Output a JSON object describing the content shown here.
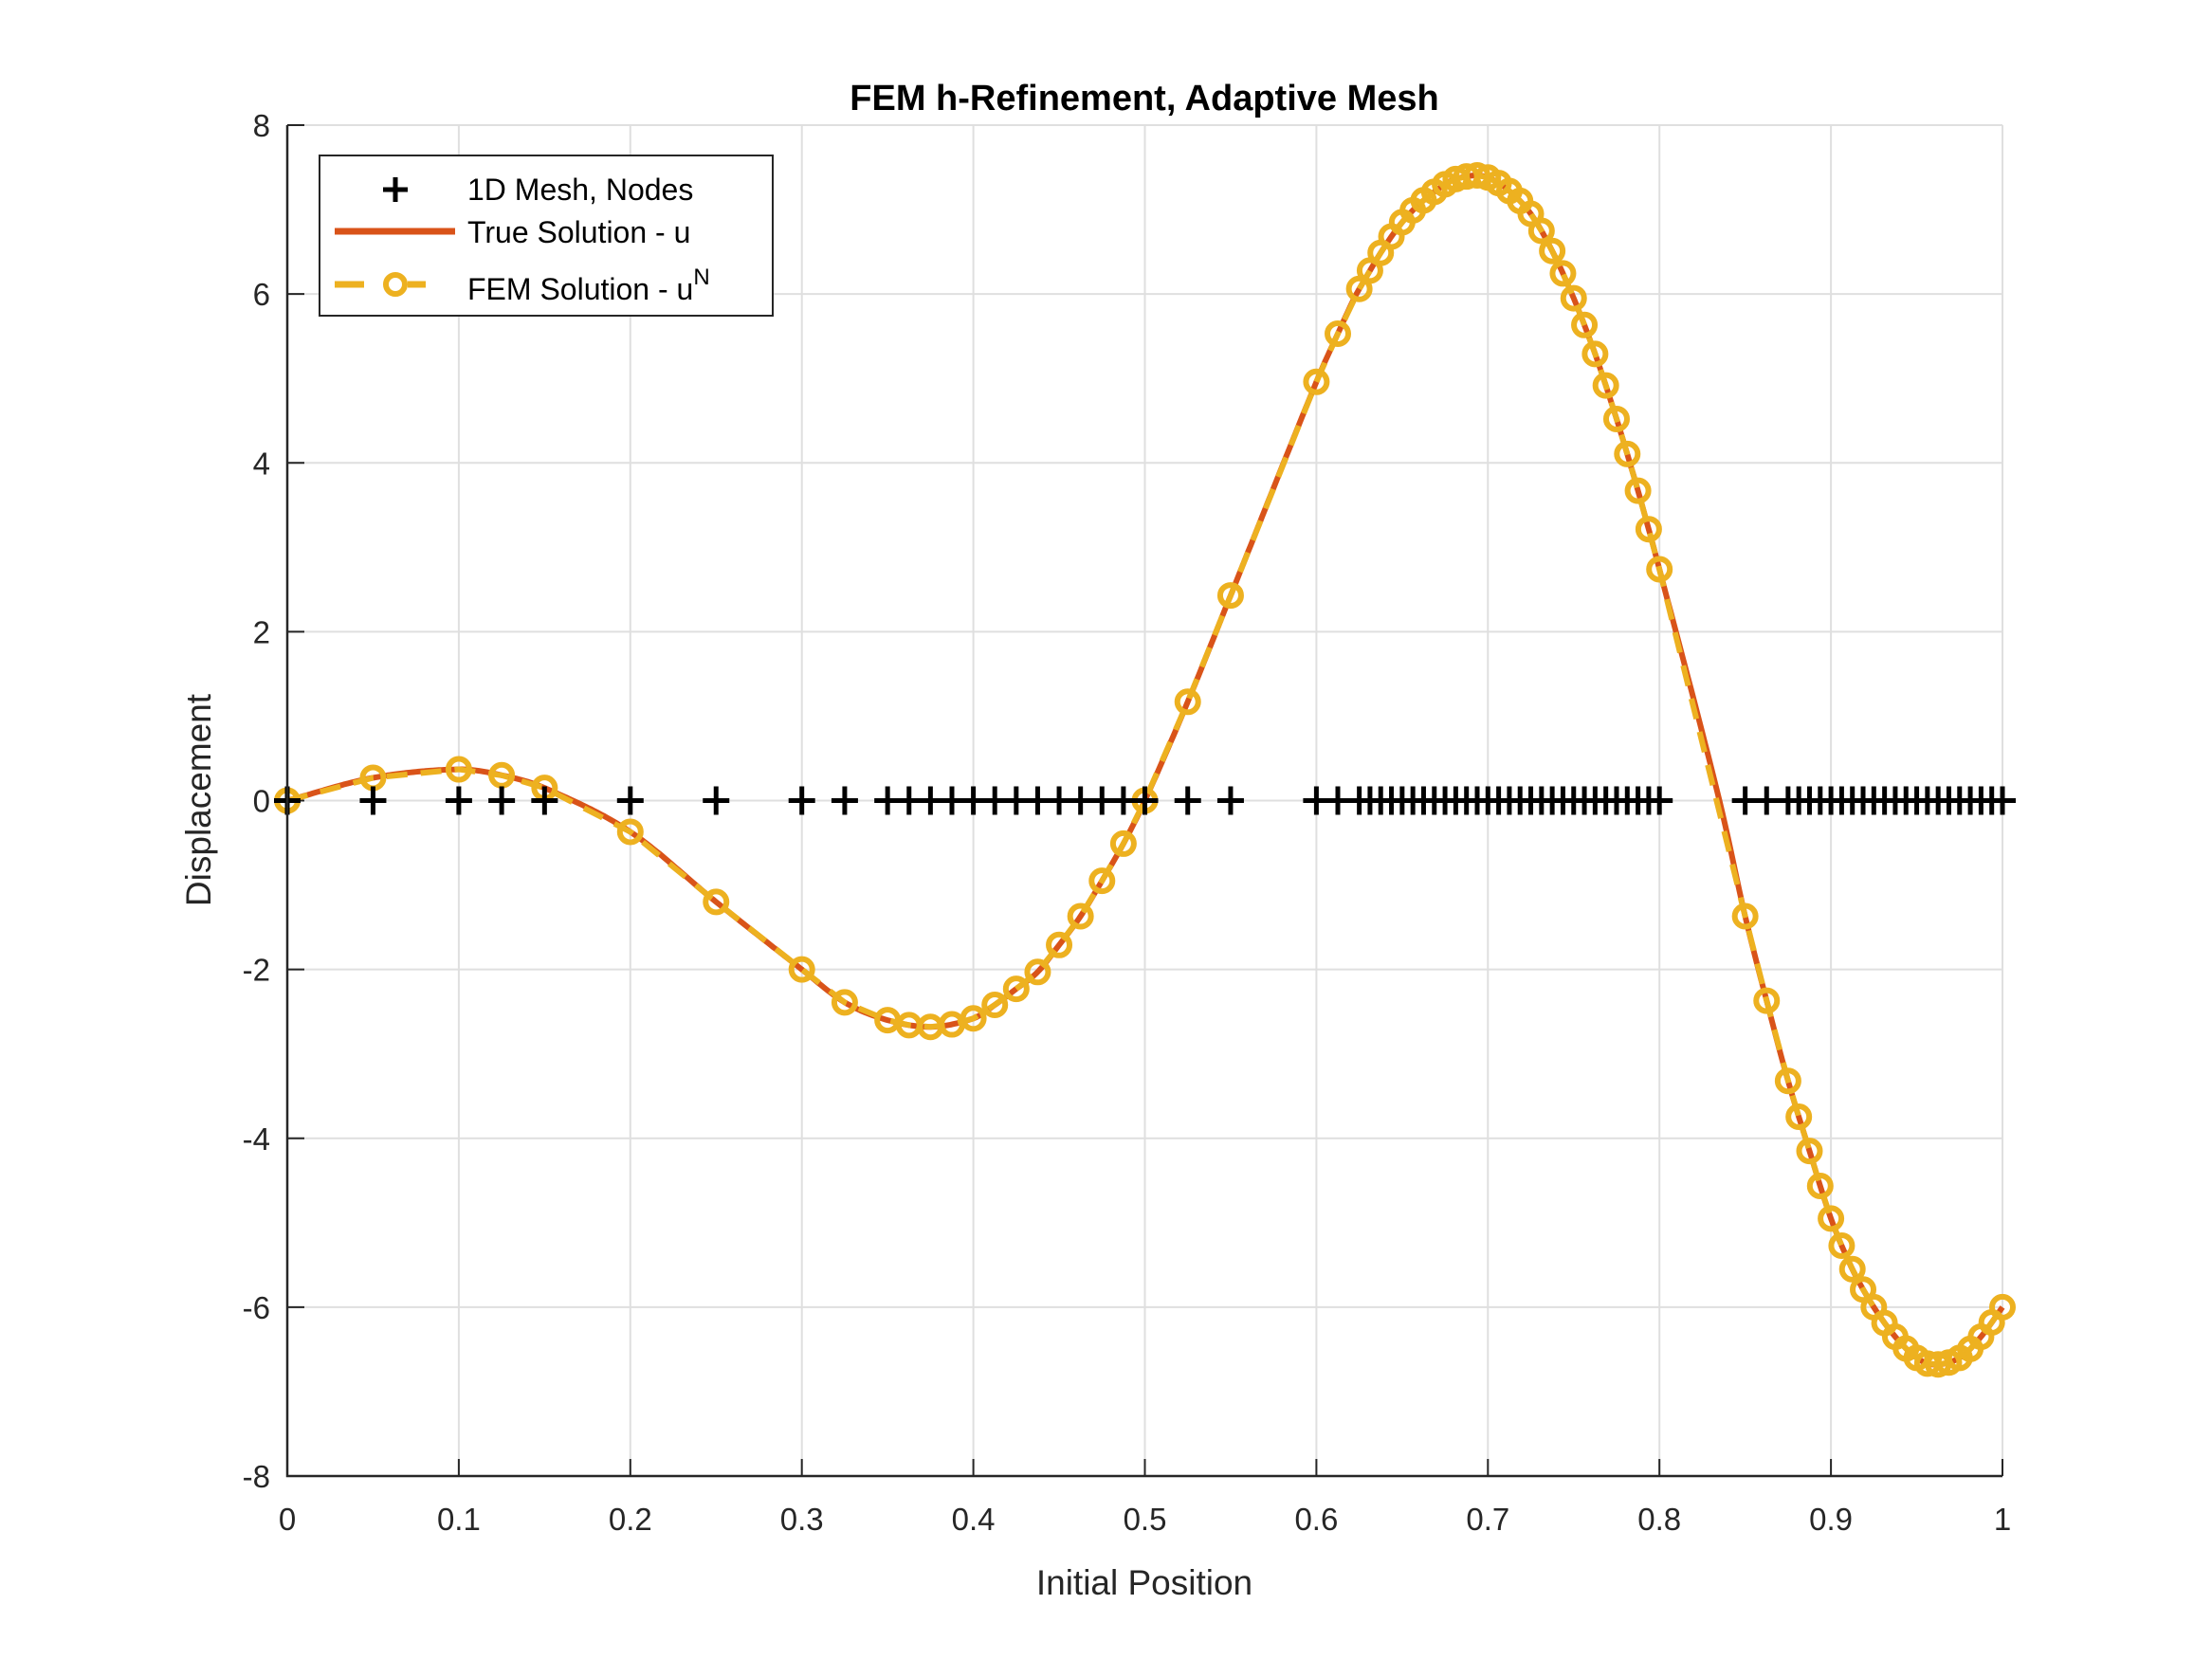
{
  "chart_data": {
    "type": "line",
    "title": "FEM h-Refinement, Adaptive Mesh",
    "xlabel": "Initial Position",
    "ylabel": "Displacement",
    "xlim": [
      0,
      1
    ],
    "ylim": [
      -8,
      8
    ],
    "xticks": [
      0,
      0.1,
      0.2,
      0.3,
      0.4,
      0.5,
      0.6,
      0.7,
      0.8,
      0.9,
      1
    ],
    "xtick_labels": [
      "0",
      "0.1",
      "0.2",
      "0.3",
      "0.4",
      "0.5",
      "0.6",
      "0.7",
      "0.8",
      "0.9",
      "1"
    ],
    "yticks": [
      -8,
      -6,
      -4,
      -2,
      0,
      2,
      4,
      6,
      8
    ],
    "ytick_labels": [
      "-8",
      "-6",
      "-4",
      "-2",
      "0",
      "2",
      "4",
      "6",
      "8"
    ],
    "grid": true,
    "legend_position": "northwest",
    "legend": [
      {
        "label": "1D Mesh, Nodes",
        "style": "marker-plus",
        "color": "#000000"
      },
      {
        "label": "True Solution - u",
        "style": "solid-line",
        "color": "#D95319"
      },
      {
        "label": "FEM Solution - u",
        "label_superscript": "N",
        "style": "dashed-line-circle",
        "color": "#EDB120"
      }
    ],
    "series": [
      {
        "name": "True Solution - u",
        "color": "#D95319",
        "x": [
          0,
          0.05,
          0.1,
          0.125,
          0.15,
          0.2,
          0.25,
          0.3,
          0.325,
          0.35,
          0.375,
          0.4,
          0.4125,
          0.425,
          0.4375,
          0.45,
          0.4625,
          0.475,
          0.4875,
          0.5,
          0.525,
          0.55,
          0.6,
          0.6125,
          0.625,
          0.65,
          0.675,
          0.69,
          0.7,
          0.7125,
          0.725,
          0.7375,
          0.75,
          0.7625,
          0.775,
          0.7875,
          0.8,
          0.835,
          0.85,
          0.8625,
          0.875,
          0.8875,
          0.9,
          0.9125,
          0.925,
          0.9375,
          0.95,
          0.96,
          0.975,
          0.9875,
          1.0
        ],
        "values": [
          0,
          0.27,
          0.37,
          0.3,
          0.15,
          -0.37,
          -1.2,
          -2.0,
          -2.39,
          -2.6,
          -2.68,
          -2.58,
          -2.42,
          -2.23,
          -2.03,
          -1.71,
          -1.37,
          -0.95,
          -0.51,
          0,
          1.17,
          2.43,
          4.96,
          5.53,
          6.06,
          6.85,
          7.3,
          7.4,
          7.38,
          7.22,
          6.95,
          6.51,
          5.95,
          5.29,
          4.52,
          3.67,
          2.74,
          0,
          -1.37,
          -2.37,
          -3.32,
          -4.15,
          -4.95,
          -5.55,
          -6.0,
          -6.35,
          -6.6,
          -6.68,
          -6.6,
          -6.35,
          -6.0
        ]
      },
      {
        "name": "1D Mesh, Nodes",
        "color": "#000000",
        "marker": "+",
        "y_constant": 0,
        "x": [
          0,
          0.05,
          0.1,
          0.125,
          0.15,
          0.2,
          0.25,
          0.3,
          0.325,
          0.35,
          0.3625,
          0.375,
          0.3875,
          0.4,
          0.4125,
          0.425,
          0.4375,
          0.45,
          0.4625,
          0.475,
          0.4875,
          0.5,
          0.525,
          0.55,
          0.6,
          0.6125,
          0.625,
          0.63125,
          0.6375,
          0.64375,
          0.65,
          0.65625,
          0.6625,
          0.66875,
          0.675,
          0.68125,
          0.6875,
          0.69375,
          0.7,
          0.70625,
          0.7125,
          0.71875,
          0.725,
          0.73125,
          0.7375,
          0.74375,
          0.75,
          0.75625,
          0.7625,
          0.76875,
          0.775,
          0.78125,
          0.7875,
          0.79375,
          0.8,
          0.85,
          0.8625,
          0.875,
          0.88125,
          0.8875,
          0.89375,
          0.9,
          0.90625,
          0.9125,
          0.91875,
          0.925,
          0.93125,
          0.9375,
          0.94375,
          0.95,
          0.95625,
          0.9625,
          0.96875,
          0.975,
          0.98125,
          0.9875,
          0.99375,
          1.0
        ]
      },
      {
        "name": "FEM Solution - u^N",
        "color": "#EDB120",
        "marker": "o",
        "line": "dashed",
        "x_from": "1D Mesh, Nodes"
      }
    ]
  },
  "colors": {
    "true_solution": "#D95319",
    "fem_solution": "#EDB120",
    "mesh_nodes": "#000000",
    "grid": "#DFDFDF",
    "axis": "#262626"
  }
}
